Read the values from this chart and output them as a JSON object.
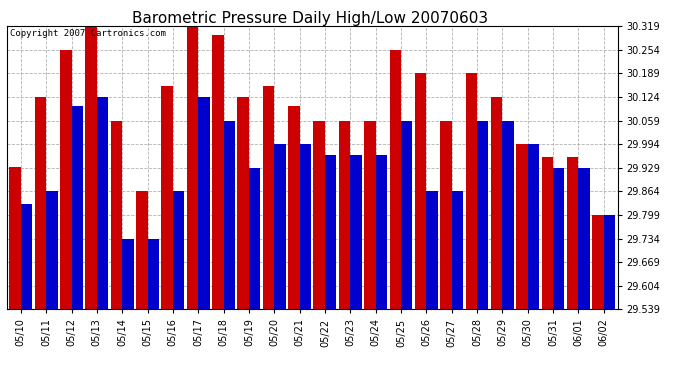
{
  "title": "Barometric Pressure Daily High/Low 20070603",
  "copyright": "Copyright 2007 Cartronics.com",
  "categories": [
    "05/10",
    "05/11",
    "05/12",
    "05/13",
    "05/14",
    "05/15",
    "05/16",
    "05/17",
    "05/18",
    "05/19",
    "05/20",
    "05/21",
    "05/22",
    "05/23",
    "05/24",
    "05/25",
    "05/26",
    "05/27",
    "05/28",
    "05/29",
    "05/30",
    "05/31",
    "06/01",
    "06/02"
  ],
  "highs": [
    29.93,
    30.124,
    30.254,
    30.319,
    30.059,
    29.864,
    30.155,
    30.319,
    30.295,
    30.124,
    30.155,
    30.1,
    30.059,
    30.059,
    30.059,
    30.254,
    30.189,
    30.059,
    30.189,
    30.124,
    29.994,
    29.96,
    29.96,
    29.8
  ],
  "lows": [
    29.83,
    29.864,
    30.1,
    30.124,
    29.734,
    29.734,
    29.864,
    30.124,
    30.059,
    29.929,
    29.994,
    29.994,
    29.964,
    29.964,
    29.964,
    30.059,
    29.864,
    29.864,
    30.059,
    30.059,
    29.994,
    29.929,
    29.929,
    29.799
  ],
  "high_color": "#cc0000",
  "low_color": "#0000cc",
  "bg_color": "#ffffff",
  "grid_color": "#aaaaaa",
  "ymin": 29.539,
  "ymax": 30.319,
  "yticks": [
    29.539,
    29.604,
    29.669,
    29.734,
    29.799,
    29.864,
    29.929,
    29.994,
    30.059,
    30.124,
    30.189,
    30.254,
    30.319
  ],
  "title_fontsize": 11,
  "tick_fontsize": 7,
  "bar_width": 0.45
}
